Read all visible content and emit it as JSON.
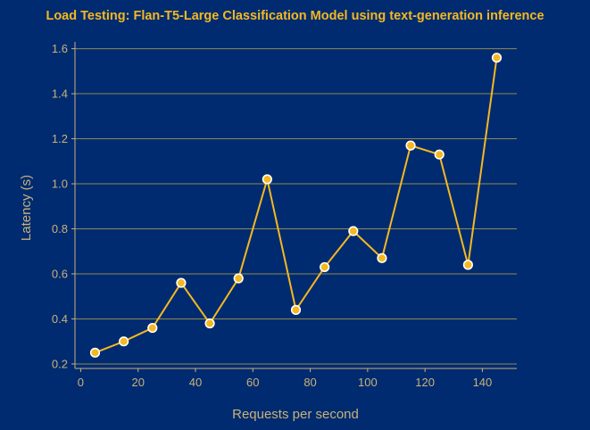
{
  "chart_data": {
    "type": "line",
    "title": "Load Testing: Flan-T5-Large Classification Model using text-generation inference",
    "xlabel": "Requests per second",
    "ylabel": "Latency (s)",
    "xlim": [
      -2,
      152
    ],
    "ylim": [
      0.18,
      1.63
    ],
    "x_ticks": [
      0,
      20,
      40,
      60,
      80,
      100,
      120,
      140
    ],
    "y_ticks": [
      0.2,
      0.4,
      0.6,
      0.8,
      1.0,
      1.2,
      1.4,
      1.6
    ],
    "y_tick_labels": [
      "0.2",
      "0.4",
      "0.6",
      "0.8",
      "1.0",
      "1.2",
      "1.4",
      "1.6"
    ],
    "grid": "horizontal",
    "series": [
      {
        "x": [
          5,
          15,
          25,
          35,
          45,
          55,
          65,
          75,
          85,
          95,
          105,
          115,
          125,
          135,
          145
        ],
        "y": [
          0.25,
          0.3,
          0.36,
          0.56,
          0.38,
          0.58,
          1.02,
          0.44,
          0.63,
          0.79,
          0.67,
          1.17,
          1.13,
          0.64,
          1.56
        ]
      }
    ],
    "colors": {
      "background": "#002b70",
      "accent": "#f5b820",
      "axis": "#c8b27a",
      "grid": "#8f8a52",
      "marker_edge": "#ffffff"
    }
  }
}
